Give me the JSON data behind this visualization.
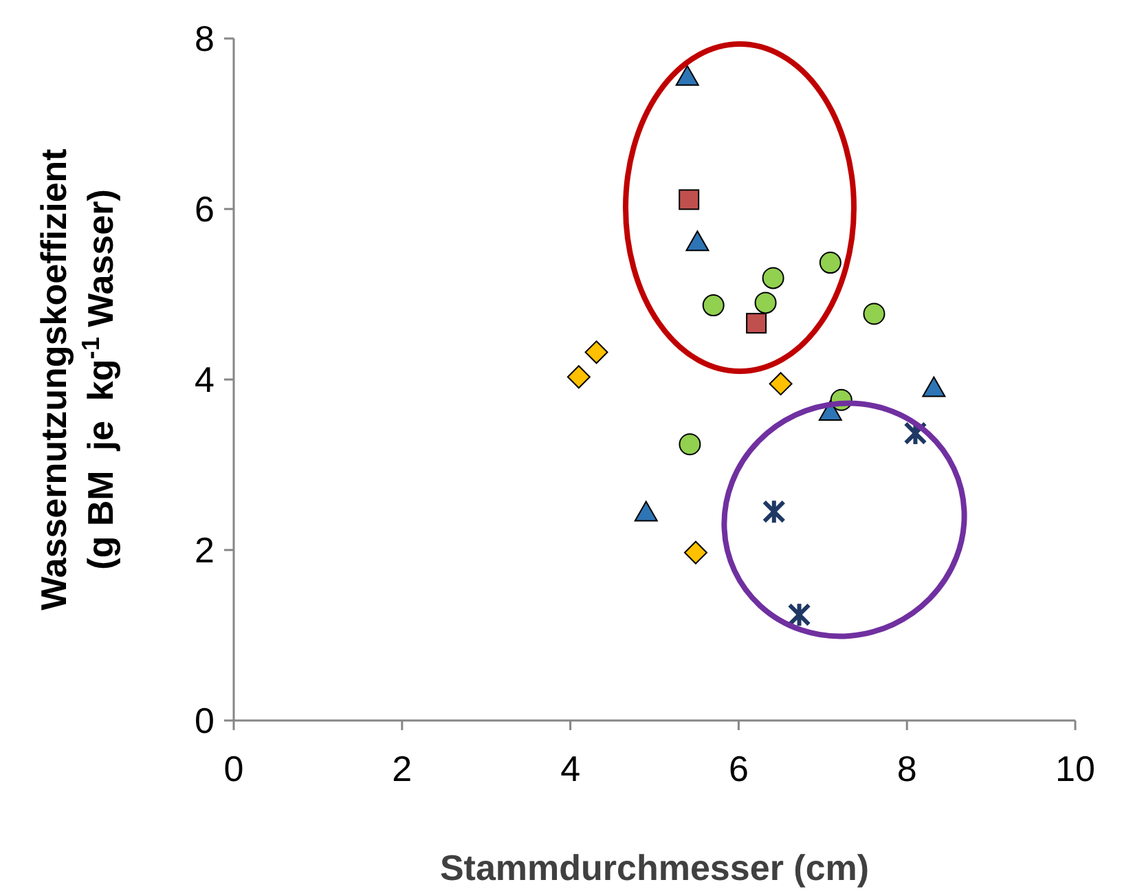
{
  "chart_data": {
    "type": "scatter",
    "xlabel": "Stammdurchmesser (cm)",
    "ylabel": "Wassernutzungskoeffizient\n(g BM  je  kg$^{-1}$ Wasser)",
    "xlim": [
      0,
      10
    ],
    "xticks": [
      0,
      2,
      4,
      6,
      8,
      10
    ],
    "ylim": [
      0,
      8
    ],
    "yticks": [
      0,
      2,
      4,
      6,
      8
    ],
    "grid": false,
    "series": [
      {
        "color": "#2e75b6",
        "marker": "triangle",
        "x": [
          5.39,
          5.51,
          4.9,
          7.09,
          8.32
        ],
        "values": [
          7.55,
          5.61,
          2.44,
          3.62,
          3.9
        ]
      },
      {
        "color": "#c0504d",
        "marker": "square",
        "x": [
          5.41,
          6.21
        ],
        "values": [
          6.11,
          4.66
        ]
      },
      {
        "color": "#92d050",
        "marker": "circle",
        "x": [
          5.7,
          6.41,
          6.32,
          7.09,
          7.61,
          7.22,
          5.42
        ],
        "values": [
          4.87,
          5.19,
          4.9,
          5.37,
          4.77,
          3.76,
          3.24
        ]
      },
      {
        "color": "#ffc000",
        "marker": "diamond",
        "x": [
          4.1,
          4.31,
          6.5,
          5.49
        ],
        "values": [
          4.03,
          4.32,
          3.95,
          1.97
        ]
      },
      {
        "color": "#1f3864",
        "marker": "cross",
        "x": [
          6.42,
          6.72,
          8.1
        ],
        "values": [
          2.45,
          1.24,
          3.37
        ]
      }
    ]
  }
}
